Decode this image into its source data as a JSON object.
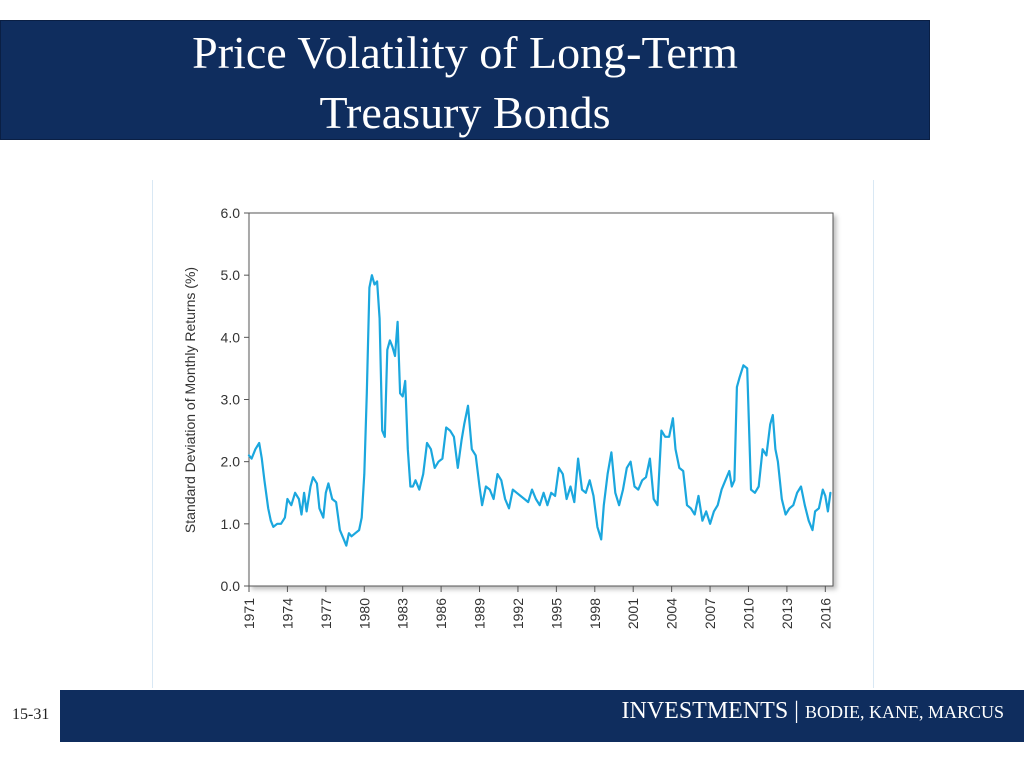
{
  "slide": {
    "title_line1": "Price Volatility of Long-Term",
    "title_line2": "Treasury Bonds",
    "slide_number": "15-31",
    "footer_book": "INVESTMENTS |",
    "footer_authors": "BODIE, KANE, MARCUS"
  },
  "colors": {
    "title_bar": "#0f2d5e",
    "line": "#1ba7de",
    "axis": "#555555"
  },
  "chart_data": {
    "type": "line",
    "title": "",
    "xlabel": "",
    "ylabel": "Standard Deviation of Monthly Returns (%)",
    "xlim": [
      1971,
      2016.6
    ],
    "ylim": [
      0,
      6
    ],
    "y_ticks": [
      "0.0",
      "1.0",
      "2.0",
      "3.0",
      "4.0",
      "5.0",
      "6.0"
    ],
    "y_tick_values": [
      0,
      1,
      2,
      3,
      4,
      5,
      6
    ],
    "x_ticks": [
      "1971",
      "1974",
      "1977",
      "1980",
      "1983",
      "1986",
      "1989",
      "1992",
      "1995",
      "1998",
      "2001",
      "2004",
      "2007",
      "2010",
      "2013",
      "2016"
    ],
    "x_tick_values": [
      1971,
      1974,
      1977,
      1980,
      1983,
      1986,
      1989,
      1992,
      1995,
      1998,
      2001,
      2004,
      2007,
      2010,
      2013,
      2016
    ],
    "grid": false,
    "series": [
      {
        "x": [
          1971.0,
          1971.2,
          1971.5,
          1971.8,
          1972.0,
          1972.2,
          1972.5,
          1972.7,
          1972.9,
          1973.2,
          1973.5,
          1973.8,
          1974.0,
          1974.3,
          1974.6,
          1974.9,
          1975.1,
          1975.3,
          1975.5,
          1975.8,
          1976.0,
          1976.3,
          1976.5,
          1976.8,
          1977.0,
          1977.2,
          1977.5,
          1977.8,
          1978.1,
          1978.4,
          1978.6,
          1978.8,
          1979.0,
          1979.3,
          1979.6,
          1979.8,
          1980.0,
          1980.2,
          1980.4,
          1980.6,
          1980.8,
          1981.0,
          1981.2,
          1981.4,
          1981.6,
          1981.8,
          1982.0,
          1982.2,
          1982.4,
          1982.6,
          1982.8,
          1983.0,
          1983.2,
          1983.4,
          1983.6,
          1983.8,
          1984.0,
          1984.3,
          1984.6,
          1984.9,
          1985.2,
          1985.5,
          1985.8,
          1986.1,
          1986.4,
          1986.7,
          1987.0,
          1987.3,
          1987.6,
          1987.8,
          1988.1,
          1988.4,
          1988.7,
          1989.0,
          1989.2,
          1989.5,
          1989.8,
          1990.1,
          1990.4,
          1990.7,
          1991.0,
          1991.3,
          1991.6,
          1991.9,
          1992.2,
          1992.5,
          1992.8,
          1993.1,
          1993.4,
          1993.7,
          1994.0,
          1994.3,
          1994.6,
          1994.9,
          1995.2,
          1995.5,
          1995.8,
          1996.1,
          1996.4,
          1996.7,
          1997.0,
          1997.3,
          1997.6,
          1997.9,
          1998.2,
          1998.5,
          1998.7,
          1999.0,
          1999.3,
          1999.6,
          1999.9,
          2000.2,
          2000.5,
          2000.8,
          2001.1,
          2001.4,
          2001.7,
          2002.0,
          2002.3,
          2002.6,
          2002.9,
          2003.2,
          2003.5,
          2003.8,
          2004.1,
          2004.3,
          2004.6,
          2004.9,
          2005.2,
          2005.5,
          2005.8,
          2006.1,
          2006.4,
          2006.7,
          2007.0,
          2007.3,
          2007.6,
          2007.9,
          2008.2,
          2008.5,
          2008.7,
          2008.9,
          2009.1,
          2009.3,
          2009.6,
          2009.9,
          2010.2,
          2010.5,
          2010.8,
          2011.1,
          2011.4,
          2011.7,
          2011.9,
          2012.1,
          2012.3,
          2012.6,
          2012.9,
          2013.2,
          2013.5,
          2013.8,
          2014.1,
          2014.4,
          2014.7,
          2015.0,
          2015.2,
          2015.5,
          2015.8,
          2016.0,
          2016.2,
          2016.4
        ],
        "y": [
          2.1,
          2.05,
          2.2,
          2.3,
          2.05,
          1.7,
          1.25,
          1.05,
          0.95,
          1.0,
          1.0,
          1.1,
          1.4,
          1.3,
          1.5,
          1.4,
          1.15,
          1.5,
          1.2,
          1.6,
          1.75,
          1.65,
          1.25,
          1.1,
          1.5,
          1.65,
          1.4,
          1.35,
          0.9,
          0.75,
          0.65,
          0.85,
          0.8,
          0.85,
          0.9,
          1.1,
          1.8,
          3.1,
          4.8,
          5.0,
          4.85,
          4.9,
          4.3,
          2.5,
          2.4,
          3.8,
          3.95,
          3.85,
          3.7,
          4.25,
          3.1,
          3.05,
          3.3,
          2.2,
          1.6,
          1.6,
          1.7,
          1.55,
          1.8,
          2.3,
          2.2,
          1.9,
          2.0,
          2.05,
          2.55,
          2.5,
          2.4,
          1.9,
          2.35,
          2.6,
          2.9,
          2.2,
          2.1,
          1.6,
          1.3,
          1.6,
          1.55,
          1.4,
          1.8,
          1.7,
          1.4,
          1.25,
          1.55,
          1.5,
          1.45,
          1.4,
          1.35,
          1.55,
          1.4,
          1.3,
          1.5,
          1.3,
          1.5,
          1.45,
          1.9,
          1.8,
          1.4,
          1.6,
          1.35,
          2.05,
          1.55,
          1.5,
          1.7,
          1.45,
          0.95,
          0.75,
          1.3,
          1.8,
          2.15,
          1.5,
          1.3,
          1.55,
          1.9,
          2.0,
          1.6,
          1.55,
          1.7,
          1.75,
          2.05,
          1.4,
          1.3,
          2.5,
          2.4,
          2.4,
          2.7,
          2.2,
          1.9,
          1.85,
          1.3,
          1.25,
          1.15,
          1.45,
          1.05,
          1.2,
          1.0,
          1.2,
          1.3,
          1.55,
          1.7,
          1.85,
          1.6,
          1.7,
          3.2,
          3.35,
          3.55,
          3.5,
          1.55,
          1.5,
          1.6,
          2.2,
          2.1,
          2.6,
          2.75,
          2.2,
          2.0,
          1.4,
          1.15,
          1.25,
          1.3,
          1.5,
          1.6,
          1.3,
          1.05,
          0.9,
          1.2,
          1.25,
          1.55,
          1.45,
          1.2,
          1.5
        ]
      }
    ]
  }
}
